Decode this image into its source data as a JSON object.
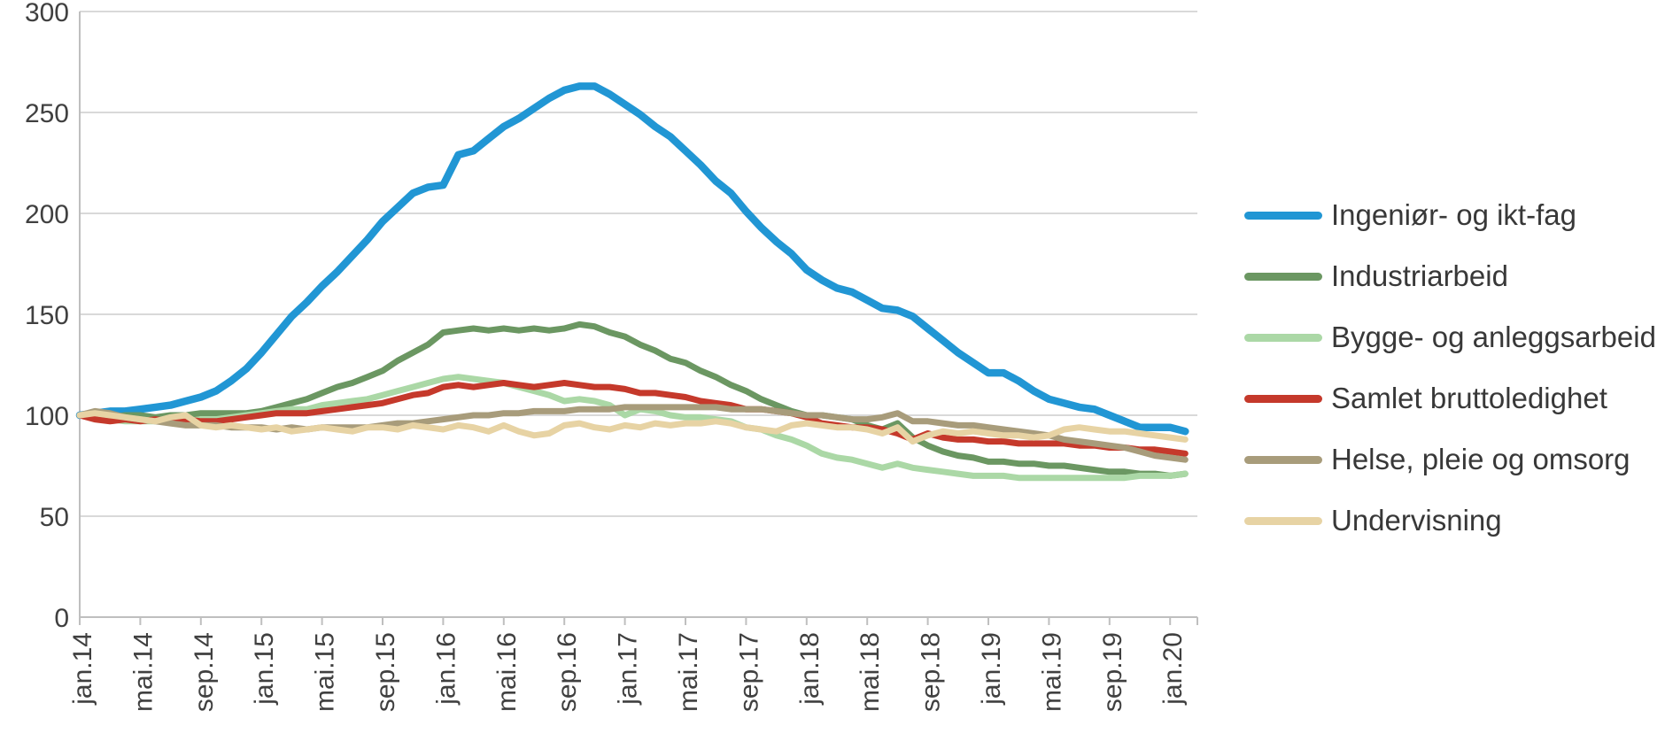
{
  "chart_data": {
    "type": "line",
    "title": "",
    "grid": "horizontal",
    "legend_position": "right",
    "ylim": [
      0,
      300
    ],
    "y_ticks": [
      300,
      250,
      200,
      150,
      100,
      50,
      0
    ],
    "x_tick_labels": [
      "jan.14",
      "mai.14",
      "sep.14",
      "jan.15",
      "mai.15",
      "sep.15",
      "jan.16",
      "mai.16",
      "sep.16",
      "jan.17",
      "mai.17",
      "sep.17",
      "jan.18",
      "mai.18",
      "sep.18",
      "jan.19",
      "mai.19",
      "sep.19",
      "jan.20"
    ],
    "x": [
      "jan.14",
      "feb.14",
      "mar.14",
      "apr.14",
      "mai.14",
      "jun.14",
      "jul.14",
      "aug.14",
      "sep.14",
      "okt.14",
      "nov.14",
      "des.14",
      "jan.15",
      "feb.15",
      "mar.15",
      "apr.15",
      "mai.15",
      "jun.15",
      "jul.15",
      "aug.15",
      "sep.15",
      "okt.15",
      "nov.15",
      "des.15",
      "jan.16",
      "feb.16",
      "mar.16",
      "apr.16",
      "mai.16",
      "jun.16",
      "jul.16",
      "aug.16",
      "sep.16",
      "okt.16",
      "nov.16",
      "des.16",
      "jan.17",
      "feb.17",
      "mar.17",
      "apr.17",
      "mai.17",
      "jun.17",
      "jul.17",
      "aug.17",
      "sep.17",
      "okt.17",
      "nov.17",
      "des.17",
      "jan.18",
      "feb.18",
      "mar.18",
      "apr.18",
      "mai.18",
      "jun.18",
      "jul.18",
      "aug.18",
      "sep.18",
      "okt.18",
      "nov.18",
      "des.18",
      "jan.19",
      "feb.19",
      "mar.19",
      "apr.19",
      "mai.19",
      "jun.19",
      "jul.19",
      "aug.19",
      "sep.19",
      "okt.19",
      "nov.19",
      "des.19",
      "jan.20",
      "feb.20"
    ],
    "series": [
      {
        "name": "Ingeniør- og ikt-fag",
        "color": "#2196d4",
        "stroke_width": 8.5,
        "values": [
          100,
          101,
          102,
          102,
          103,
          104,
          105,
          107,
          109,
          112,
          117,
          123,
          131,
          140,
          149,
          156,
          164,
          171,
          179,
          187,
          196,
          203,
          210,
          213,
          214,
          229,
          231,
          237,
          243,
          247,
          252,
          257,
          261,
          263,
          263,
          259,
          254,
          249,
          243,
          238,
          231,
          224,
          216,
          210,
          201,
          193,
          186,
          180,
          172,
          167,
          163,
          161,
          157,
          153,
          152,
          149,
          143,
          137,
          131,
          126,
          121,
          121,
          117,
          112,
          108,
          106,
          104,
          103,
          100,
          97,
          94,
          94,
          94,
          92
        ]
      },
      {
        "name": "Industriarbeid",
        "color": "#6b9762",
        "stroke_width": 7,
        "values": [
          100,
          100,
          99,
          100,
          100,
          99,
          100,
          100,
          101,
          101,
          101,
          101,
          102,
          104,
          106,
          108,
          111,
          114,
          116,
          119,
          122,
          127,
          131,
          135,
          141,
          142,
          143,
          142,
          143,
          142,
          143,
          142,
          143,
          145,
          144,
          141,
          139,
          135,
          132,
          128,
          126,
          122,
          119,
          115,
          112,
          108,
          105,
          102,
          100,
          100,
          99,
          98,
          95,
          93,
          96,
          89,
          85,
          82,
          80,
          79,
          77,
          77,
          76,
          76,
          75,
          75,
          74,
          73,
          72,
          72,
          71,
          71,
          70,
          71
        ]
      },
      {
        "name": "Bygge- og anleggsarbeid",
        "color": "#abd8a6",
        "stroke_width": 7,
        "values": [
          100,
          99,
          98,
          97,
          97,
          97,
          97,
          97,
          98,
          98,
          99,
          100,
          101,
          102,
          103,
          103,
          105,
          106,
          107,
          108,
          110,
          112,
          114,
          116,
          118,
          119,
          118,
          117,
          116,
          114,
          112,
          110,
          107,
          108,
          107,
          105,
          100,
          103,
          102,
          100,
          99,
          99,
          98,
          97,
          94,
          93,
          90,
          88,
          85,
          81,
          79,
          78,
          76,
          74,
          76,
          74,
          73,
          72,
          71,
          70,
          70,
          70,
          69,
          69,
          69,
          69,
          69,
          69,
          69,
          69,
          70,
          70,
          70,
          71
        ]
      },
      {
        "name": "Samlet bruttoledighet",
        "color": "#c5392b",
        "stroke_width": 7,
        "values": [
          100,
          98,
          97,
          98,
          97,
          98,
          97,
          98,
          97,
          97,
          98,
          99,
          100,
          101,
          101,
          101,
          102,
          103,
          104,
          105,
          106,
          108,
          110,
          111,
          114,
          115,
          114,
          115,
          116,
          115,
          114,
          115,
          116,
          115,
          114,
          114,
          113,
          111,
          111,
          110,
          109,
          107,
          106,
          105,
          103,
          103,
          102,
          101,
          99,
          96,
          95,
          94,
          94,
          93,
          91,
          88,
          91,
          89,
          88,
          88,
          87,
          87,
          86,
          86,
          86,
          86,
          85,
          85,
          84,
          84,
          83,
          83,
          82,
          81
        ]
      },
      {
        "name": "Helse, pleie og omsorg",
        "color": "#a89c7b",
        "stroke_width": 7,
        "values": [
          100,
          102,
          101,
          99,
          98,
          97,
          96,
          95,
          95,
          95,
          94,
          94,
          94,
          93,
          94,
          93,
          94,
          94,
          94,
          94,
          95,
          96,
          96,
          97,
          98,
          99,
          100,
          100,
          101,
          101,
          102,
          102,
          102,
          103,
          103,
          103,
          104,
          104,
          104,
          104,
          104,
          104,
          104,
          103,
          103,
          103,
          102,
          101,
          100,
          100,
          99,
          98,
          98,
          99,
          101,
          97,
          97,
          96,
          95,
          95,
          94,
          93,
          92,
          91,
          90,
          88,
          87,
          86,
          85,
          84,
          82,
          80,
          79,
          78
        ]
      },
      {
        "name": "Undervisning",
        "color": "#e7d3a4",
        "stroke_width": 7,
        "values": [
          100,
          101,
          100,
          99,
          98,
          97,
          99,
          100,
          95,
          94,
          95,
          94,
          93,
          94,
          92,
          93,
          94,
          93,
          92,
          94,
          94,
          93,
          95,
          94,
          93,
          95,
          94,
          92,
          95,
          92,
          90,
          91,
          95,
          96,
          94,
          93,
          95,
          94,
          96,
          95,
          96,
          96,
          97,
          96,
          94,
          93,
          92,
          95,
          96,
          95,
          94,
          94,
          93,
          91,
          94,
          87,
          90,
          92,
          91,
          92,
          91,
          90,
          90,
          89,
          90,
          93,
          94,
          93,
          92,
          92,
          91,
          90,
          89,
          88
        ]
      }
    ],
    "style": {
      "grid_color": "#d9d9d9",
      "axis_color": "#bfbfbf",
      "tick_label_color": "#404040"
    }
  }
}
